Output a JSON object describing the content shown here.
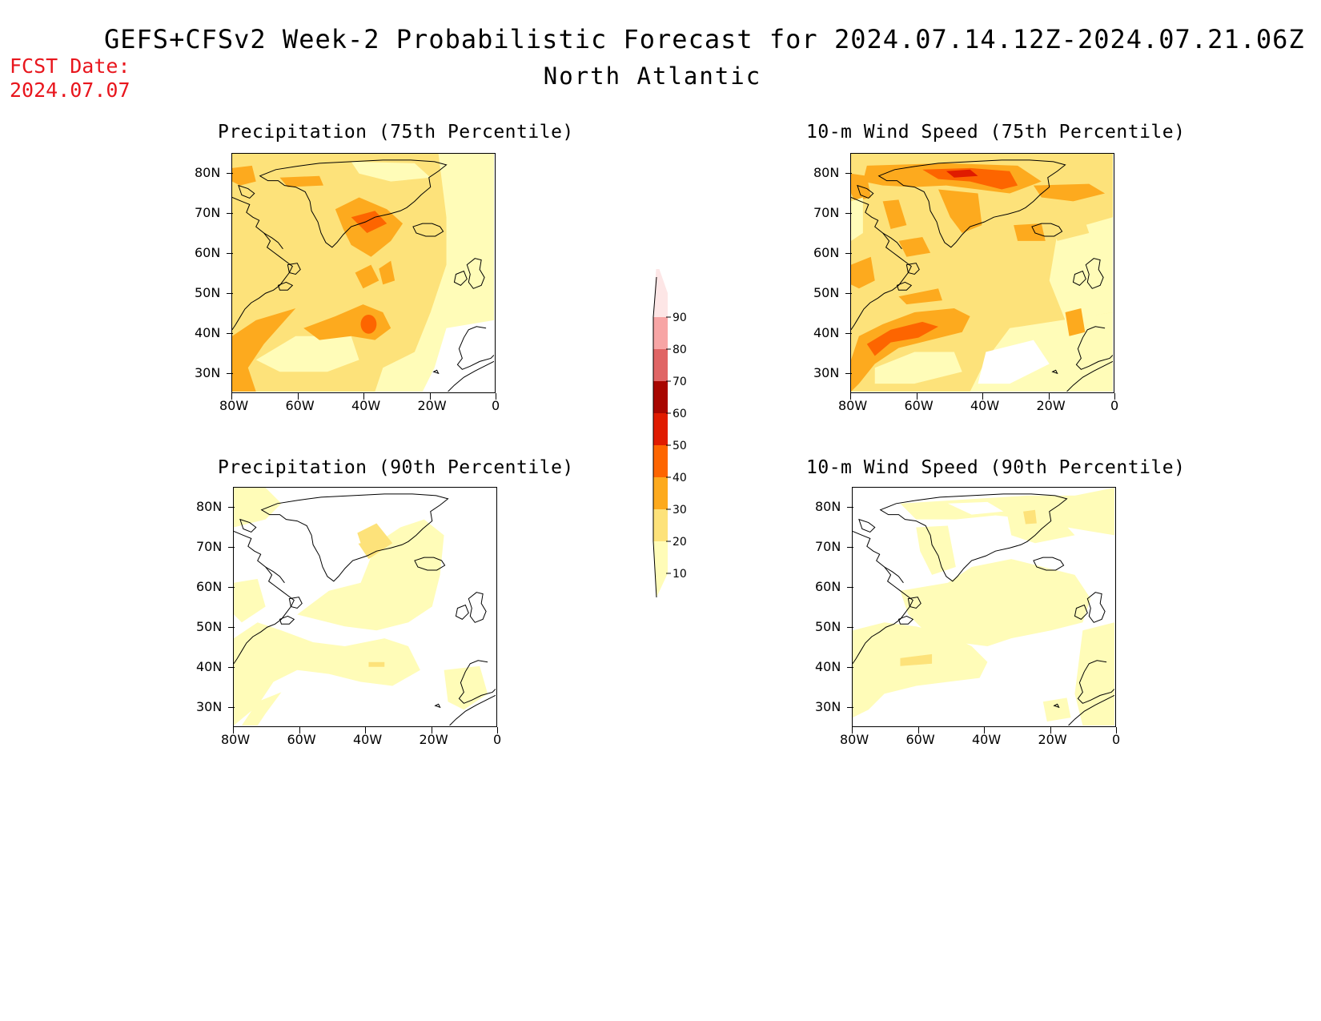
{
  "header": {
    "title": "GEFS+CFSv2 Week-2 Probabilistic Forecast for 2024.07.14.12Z-2024.07.21.06Z",
    "subtitle": "North Atlantic",
    "fcst_label": "FCST Date:",
    "fcst_date": "2024.07.07"
  },
  "axes": {
    "lat_labels": [
      "80N",
      "70N",
      "60N",
      "50N",
      "40N",
      "30N"
    ],
    "lon_labels": [
      "80W",
      "60W",
      "40W",
      "20W",
      "0"
    ]
  },
  "panels": [
    {
      "id": "precip-75",
      "title": "Precipitation (75th Percentile)"
    },
    {
      "id": "wind-75",
      "title": "10-m Wind Speed (75th Percentile)"
    },
    {
      "id": "precip-90",
      "title": "Precipitation (90th Percentile)"
    },
    {
      "id": "wind-90",
      "title": "10-m Wind Speed (90th Percentile)"
    }
  ],
  "colorbar": {
    "levels": [
      "10",
      "20",
      "30",
      "40",
      "50",
      "60",
      "70",
      "80",
      "90"
    ],
    "colors": [
      "#fffcb8",
      "#fde27a",
      "#fdaa1e",
      "#fd6500",
      "#e01b00",
      "#a80600",
      "#e06565",
      "#f7a5a5",
      "#fde6e6"
    ]
  },
  "map_colors": {
    "white": "#ffffff",
    "light": "#fffcb8",
    "yellow": "#fde27a",
    "orange": "#fdaa1e",
    "dark_orange": "#fd6500",
    "red": "#e01b00"
  }
}
